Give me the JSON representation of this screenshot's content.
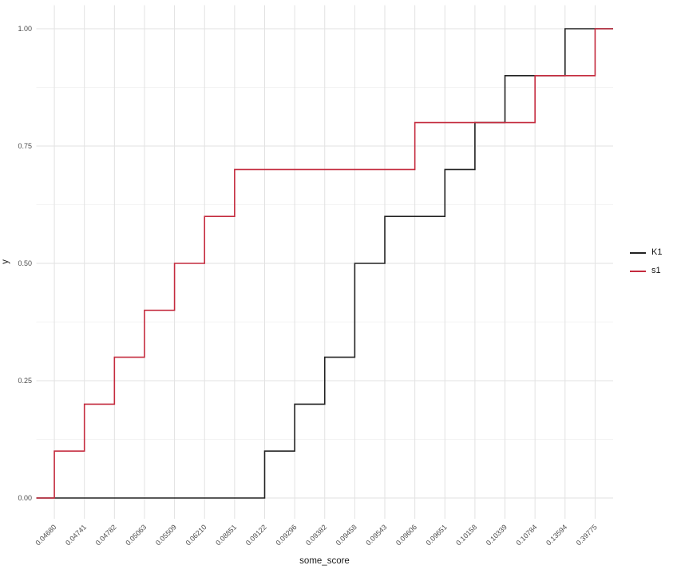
{
  "figure": {
    "background_color": "#FFFFFF",
    "legend_position": "right"
  },
  "chart_data": {
    "type": "line",
    "subtype": "ecdf-step",
    "title": "",
    "xlabel": "some_score",
    "ylabel": "y",
    "x_axis_kind": "discrete",
    "categories": [
      "0.04680",
      "0.04741",
      "0.04782",
      "0.05063",
      "0.05509",
      "0.06210",
      "0.08851",
      "0.09122",
      "0.09296",
      "0.09382",
      "0.09458",
      "0.09543",
      "0.09606",
      "0.09651",
      "0.10158",
      "0.10339",
      "0.10784",
      "0.13594",
      "0.39775"
    ],
    "x_tick_angle_deg": 45,
    "start_value": 0,
    "series": [
      {
        "name": "K1",
        "color": "#222222",
        "ecdf_values": [
          0,
          0,
          0,
          0,
          0,
          0,
          0,
          0.1,
          0.2,
          0.3,
          0.5,
          0.6,
          0.6,
          0.7,
          0.8,
          0.9,
          0.9,
          1.0,
          1.0
        ]
      },
      {
        "name": "s1",
        "color": "#C42B3E",
        "ecdf_values": [
          0.1,
          0.2,
          0.3,
          0.4,
          0.5,
          0.6,
          0.7,
          0.7,
          0.7,
          0.7,
          0.7,
          0.7,
          0.8,
          0.8,
          0.8,
          0.8,
          0.9,
          0.9,
          1.0
        ]
      }
    ],
    "y_ticks": {
      "labels": [
        "0.00",
        "0.25",
        "0.50",
        "0.75",
        "1.00"
      ],
      "values": [
        0,
        0.25,
        0.5,
        0.75,
        1
      ]
    },
    "y_minor_gridlines": [
      0.125,
      0.375,
      0.625,
      0.875
    ],
    "ylim": [
      -0.05,
      1.05
    ],
    "grid": "horizontal major+minor, vertical at categories",
    "grid_major_color": "#E2E2E2",
    "grid_minor_color": "#EFEFEF",
    "tick_label_color": "#4D4D4D",
    "axis_title_color": "#1A1A1A"
  }
}
